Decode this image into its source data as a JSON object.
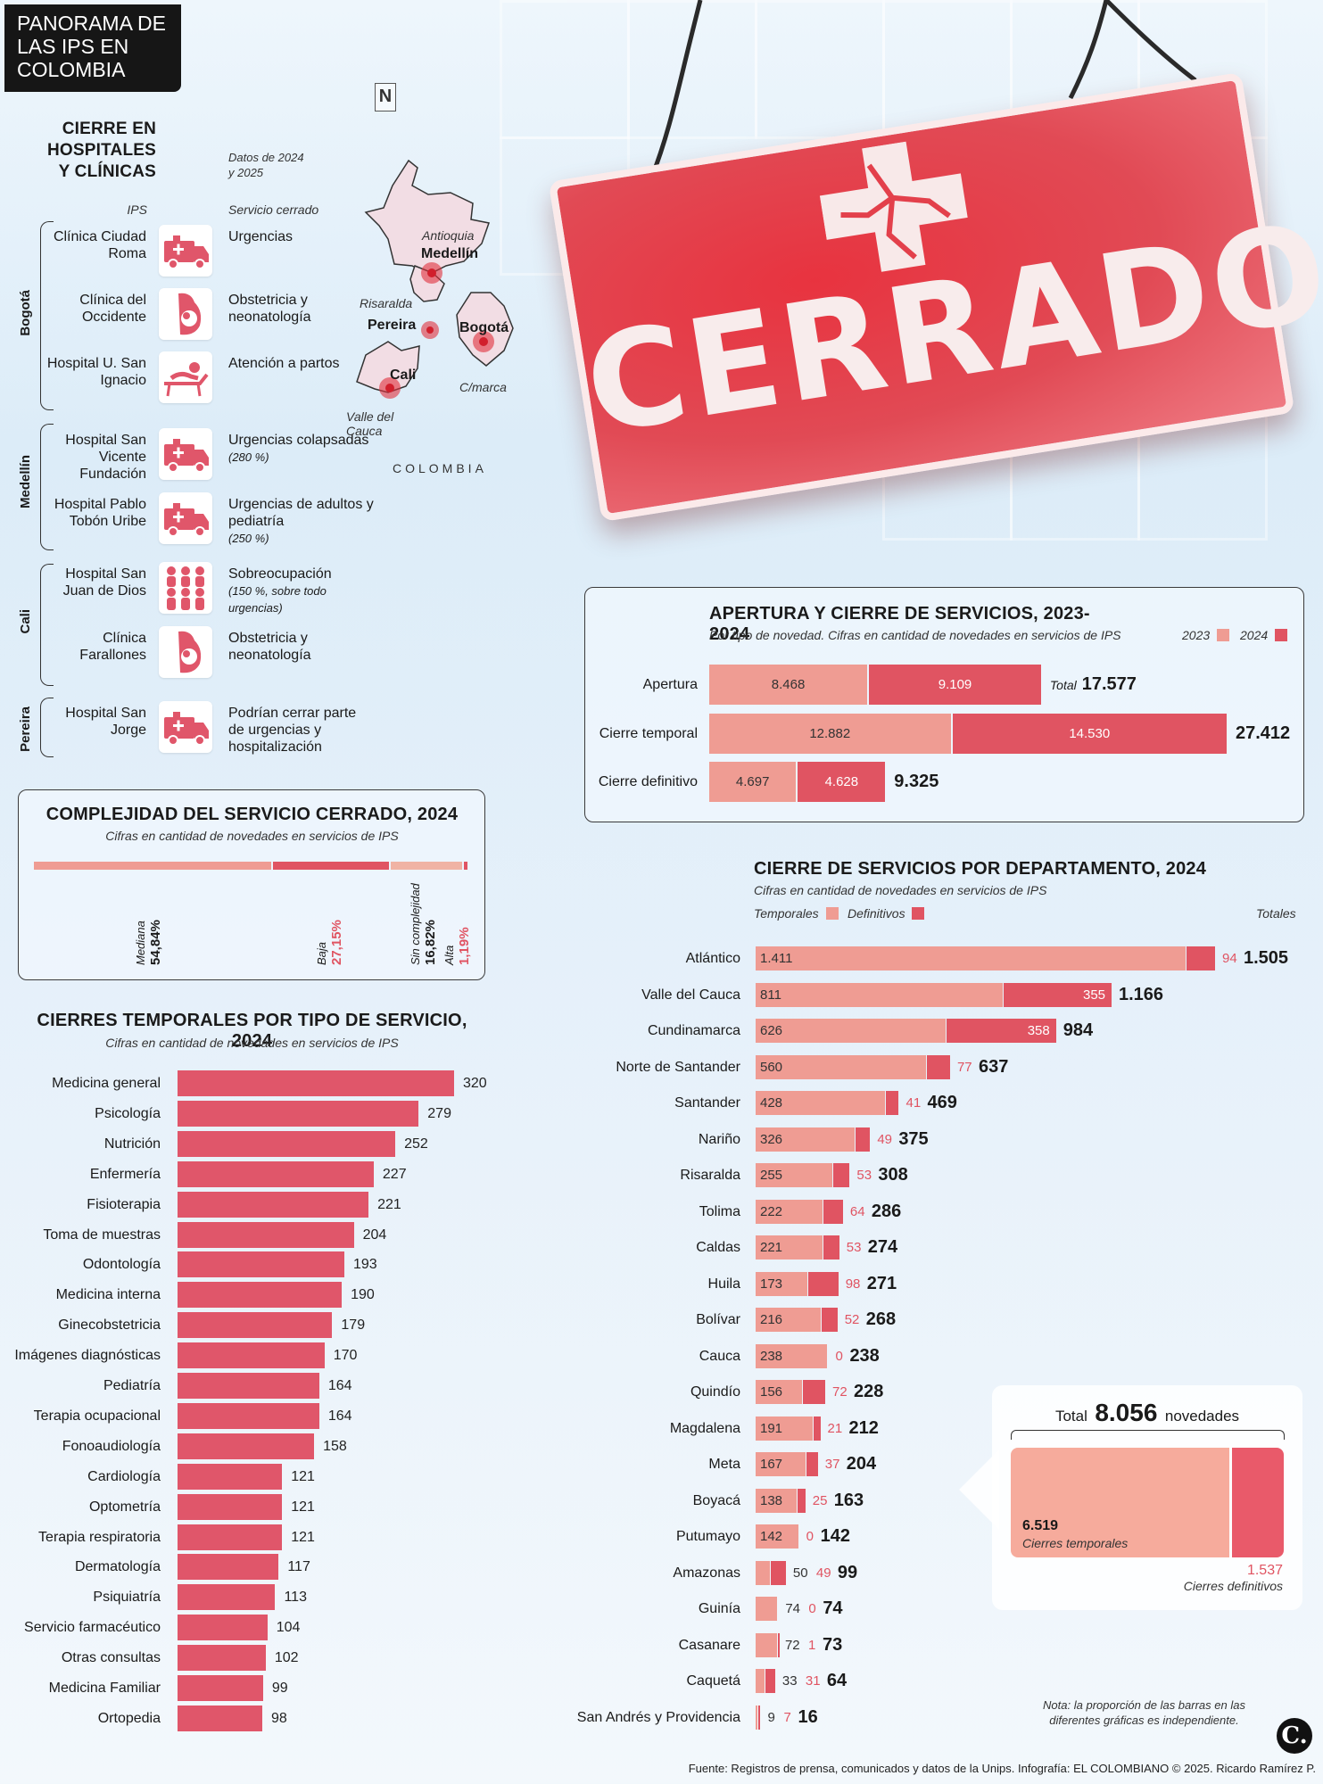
{
  "title": "PANORAMA DE LAS IPS EN COLOMBIA",
  "sign_text": "CERRADO",
  "closures": {
    "title": "CIERRE EN HOSPITALES Y CLÍNICAS",
    "note": "Datos de 2024 y 2025",
    "col_ips": "IPS",
    "col_service": "Servicio cerrado",
    "cities": [
      "Bogotá",
      "Medellín",
      "Cali",
      "Pereira"
    ],
    "rows": [
      {
        "ips": "Clínica Ciudad Roma",
        "service": "Urgencias",
        "note": "",
        "icon": "ambulance-icon"
      },
      {
        "ips": "Clínica del Occidente",
        "service": "Obstetricia y neonatología",
        "note": "",
        "icon": "pregnancy-icon"
      },
      {
        "ips": "Hospital U. San Ignacio",
        "service": "Atención a partos",
        "note": "",
        "icon": "delivery-bed-icon"
      },
      {
        "ips": "Hospital San Vicente Fundación",
        "service": "Urgencias colapsadas",
        "note": "(280 %)",
        "icon": "ambulance-icon"
      },
      {
        "ips": "Hospital Pablo Tobón Uribe",
        "service": "Urgencias de adultos y pediatría",
        "note": "(250 %)",
        "icon": "ambulance-icon"
      },
      {
        "ips": "Hospital San Juan de Dios",
        "service": "Sobreocupación",
        "note": "(150 %, sobre todo urgencias)",
        "icon": "crowd-icon"
      },
      {
        "ips": "Clínica Farallones",
        "service": "Obstetricia y neonatología",
        "note": "",
        "icon": "pregnancy-icon"
      },
      {
        "ips": "Hospital San Jorge",
        "service": "Podrían cerrar parte de urgencias y hospitalización",
        "note": "",
        "icon": "ambulance-icon"
      }
    ]
  },
  "map": {
    "north": "N",
    "country": "COLOMBIA",
    "labels": [
      "Antioquia",
      "Medellín",
      "Risaralda",
      "Pereira",
      "Bogotá",
      "Cali",
      "C/marca",
      "Valle del Cauca"
    ]
  },
  "complexity": {
    "title": "COMPLEJIDAD DEL SERVICIO CERRADO, 2024",
    "subtitle": "Cifras en cantidad de novedades en servicios de IPS",
    "segments": [
      {
        "label": "Mediana",
        "value": "54,84%",
        "pct": 54.84,
        "color": "#ef9c93"
      },
      {
        "label": "Baja",
        "value": "27,15%",
        "pct": 27.15,
        "color": "#e05462"
      },
      {
        "label": "Sin complejidad",
        "value": "16,82%",
        "pct": 16.82,
        "color": "#f0b3a4"
      },
      {
        "label": "Alta",
        "value": "1,19%",
        "pct": 1.19,
        "color": "#e05462"
      }
    ]
  },
  "temporales": {
    "title": "CIERRES TEMPORALES POR TIPO DE SERVICIO, 2024",
    "subtitle": "Cifras en cantidad de novedades en servicios de IPS",
    "categories": [
      "Medicina general",
      "Psicología",
      "Nutrición",
      "Enfermería",
      "Fisioterapia",
      "Toma de muestras",
      "Odontología",
      "Medicina interna",
      "Ginecobstetricia",
      "Imágenes diagnósticas",
      "Pediatría",
      "Terapia ocupacional",
      "Fonoaudiología",
      "Cardiología",
      "Optometría",
      "Terapia respiratoria",
      "Dermatología",
      "Psiquiatría",
      "Servicio farmacéutico",
      "Otras consultas",
      "Medicina Familiar",
      "Ortopedia"
    ],
    "values": [
      320,
      279,
      252,
      227,
      221,
      204,
      193,
      190,
      179,
      170,
      164,
      164,
      158,
      121,
      121,
      121,
      117,
      113,
      104,
      102,
      99,
      98
    ]
  },
  "apertura": {
    "title": "APERTURA Y CIERRE DE SERVICIOS, 2023-2024",
    "subtitle": "Por tipo de novedad. Cifras en cantidad de novedades en servicios de IPS",
    "legend": [
      "2023",
      "2024"
    ],
    "total_label": "Total",
    "rows": [
      {
        "label": "Apertura",
        "v2023": "8.468",
        "v2024": "9.109",
        "total": "17.577",
        "n2023": 8468,
        "n2024": 9109
      },
      {
        "label": "Cierre temporal",
        "v2023": "12.882",
        "v2024": "14.530",
        "total": "27.412",
        "n2023": 12882,
        "n2024": 14530
      },
      {
        "label": "Cierre definitivo",
        "v2023": "4.697",
        "v2024": "4.628",
        "total": "9.325",
        "n2023": 4697,
        "n2024": 4628
      }
    ]
  },
  "departamentos": {
    "title": "CIERRE DE SERVICIOS POR DEPARTAMENTO, 2024",
    "subtitle": "Cifras en cantidad de novedades en servicios de IPS",
    "legend": [
      "Temporales",
      "Definitivos"
    ],
    "totals_label": "Totales",
    "rows": [
      {
        "name": "Atlántico",
        "t": 1411,
        "d": 94,
        "tl": "1.411",
        "dl": "94",
        "tot": "1.505"
      },
      {
        "name": "Valle del Cauca",
        "t": 811,
        "d": 355,
        "tl": "811",
        "dl": "355",
        "tot": "1.166"
      },
      {
        "name": "Cundinamarca",
        "t": 626,
        "d": 358,
        "tl": "626",
        "dl": "358",
        "tot": "984"
      },
      {
        "name": "Norte de Santander",
        "t": 560,
        "d": 77,
        "tl": "560",
        "dl": "77",
        "tot": "637"
      },
      {
        "name": "Santander",
        "t": 428,
        "d": 41,
        "tl": "428",
        "dl": "41",
        "tot": "469"
      },
      {
        "name": "Nariño",
        "t": 326,
        "d": 49,
        "tl": "326",
        "dl": "49",
        "tot": "375"
      },
      {
        "name": "Risaralda",
        "t": 255,
        "d": 53,
        "tl": "255",
        "dl": "53",
        "tot": "308"
      },
      {
        "name": "Tolima",
        "t": 222,
        "d": 64,
        "tl": "222",
        "dl": "64",
        "tot": "286"
      },
      {
        "name": "Caldas",
        "t": 221,
        "d": 53,
        "tl": "221",
        "dl": "53",
        "tot": "274"
      },
      {
        "name": "Huila",
        "t": 173,
        "d": 98,
        "tl": "173",
        "dl": "98",
        "tot": "271"
      },
      {
        "name": "Bolívar",
        "t": 216,
        "d": 52,
        "tl": "216",
        "dl": "52",
        "tot": "268"
      },
      {
        "name": "Cauca",
        "t": 238,
        "d": 0,
        "tl": "238",
        "dl": "0",
        "tot": "238"
      },
      {
        "name": "Quindío",
        "t": 156,
        "d": 72,
        "tl": "156",
        "dl": "72",
        "tot": "228"
      },
      {
        "name": "Magdalena",
        "t": 191,
        "d": 21,
        "tl": "191",
        "dl": "21",
        "tot": "212"
      },
      {
        "name": "Meta",
        "t": 167,
        "d": 37,
        "tl": "167",
        "dl": "37",
        "tot": "204"
      },
      {
        "name": "Boyacá",
        "t": 138,
        "d": 25,
        "tl": "138",
        "dl": "25",
        "tot": "163"
      },
      {
        "name": "Putumayo",
        "t": 142,
        "d": 0,
        "tl": "142",
        "dl": "0",
        "tot": "142"
      },
      {
        "name": "Amazonas",
        "t": 50,
        "d": 49,
        "tl": "50",
        "dl": "49",
        "tot": "99"
      },
      {
        "name": "Guinía",
        "t": 74,
        "d": 0,
        "tl": "74",
        "dl": "0",
        "tot": "74"
      },
      {
        "name": "Casanare",
        "t": 72,
        "d": 1,
        "tl": "72",
        "dl": "1",
        "tot": "73"
      },
      {
        "name": "Caquetá",
        "t": 33,
        "d": 31,
        "tl": "33",
        "dl": "31",
        "tot": "64"
      },
      {
        "name": "San Andrés y Providencia",
        "t": 9,
        "d": 7,
        "tl": "9",
        "dl": "7",
        "tot": "16"
      }
    ]
  },
  "total_box": {
    "prefix": "Total",
    "value": "8.056",
    "suffix": "novedades",
    "temp_value": "6.519",
    "temp_label": "Cierres temporales",
    "def_value": "1.537",
    "def_label": "Cierres definitivos",
    "temp_n": 6519,
    "def_n": 1537
  },
  "note": "Nota: la proporción de las barras en las diferentes gráficas es independiente.",
  "logo": "C.",
  "source": "Fuente: Registros de prensa, comunicados y datos de la Unips. Infografía: EL COLOMBIANO © 2025. Ricardo Ramírez P.",
  "colors": {
    "temporal": "#ef9c93",
    "definitivo": "#e05462",
    "bar": "#e0566a",
    "sign": "#e8333f"
  }
}
